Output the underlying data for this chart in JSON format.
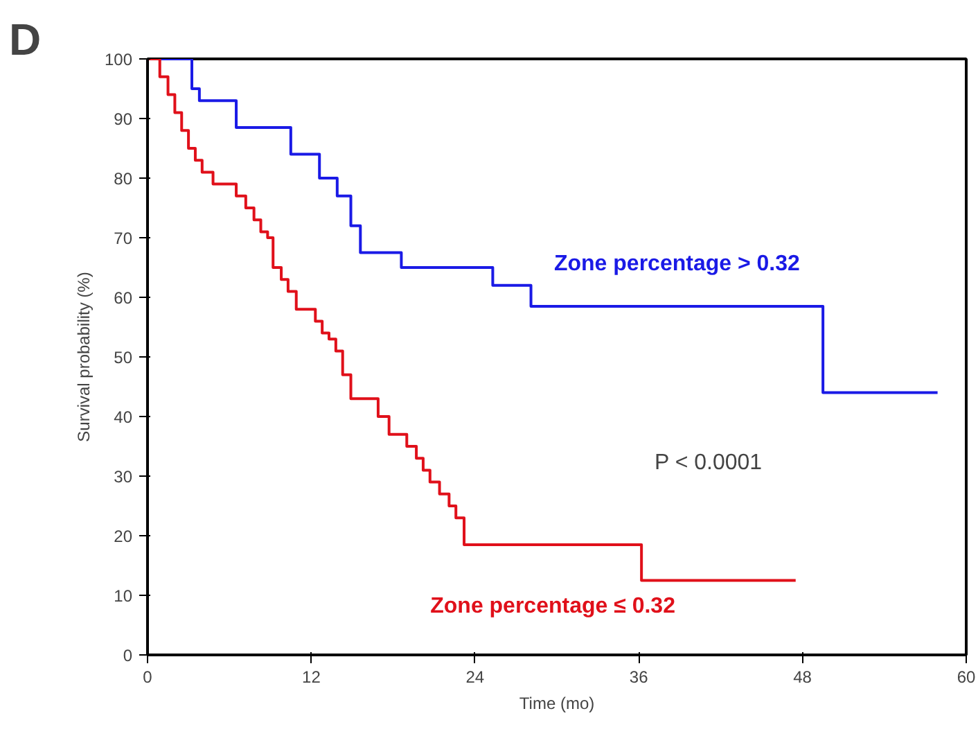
{
  "chart_data": {
    "type": "step",
    "xlabel": "Time (mo)",
    "ylabel": "Survival probability (%)",
    "xlim": [
      0,
      60
    ],
    "xticks": [
      0,
      12,
      24,
      36,
      48,
      60
    ],
    "ylim": [
      0,
      100
    ],
    "yticks": [
      0,
      10,
      20,
      30,
      40,
      50,
      60,
      70,
      80,
      90,
      100
    ],
    "grid": false,
    "marker": "none",
    "line_style": "solid",
    "annotations": [
      "D",
      "P < 0.0001"
    ],
    "series": [
      {
        "name": "Zone percentage > 0.32",
        "color": "#1a1ae6",
        "x": [
          0,
          3.25,
          3.8,
          6.5,
          10.5,
          12.6,
          13.9,
          14.9,
          15.6,
          18.6,
          25.3,
          28.1,
          49.5,
          57.9
        ],
        "values": [
          100,
          95,
          93,
          88.5,
          84,
          80,
          77,
          72,
          67.5,
          65,
          62,
          58.5,
          44,
          44
        ]
      },
      {
        "name": "Zone percentage ≤ 0.32",
        "color": "#e0101a",
        "x": [
          0,
          0.9,
          1.5,
          2,
          2.5,
          3,
          3.5,
          4,
          4.8,
          6.5,
          7.2,
          7.8,
          8.3,
          8.8,
          9.2,
          9.8,
          10.3,
          10.9,
          12.3,
          12.8,
          13.3,
          13.8,
          14.3,
          14.9,
          16.9,
          17.7,
          19.0,
          19.7,
          20.2,
          20.7,
          21.4,
          22.1,
          22.6,
          23.2,
          36.2,
          47.5
        ],
        "values": [
          100,
          97,
          94,
          91,
          88,
          85,
          83,
          81,
          79,
          77,
          75,
          73,
          71,
          70,
          65,
          63,
          61,
          58,
          56,
          54,
          53,
          51,
          47,
          43,
          40,
          37,
          35,
          33,
          31,
          29,
          27,
          25,
          23,
          18.5,
          12.5,
          12.5
        ]
      }
    ]
  }
}
